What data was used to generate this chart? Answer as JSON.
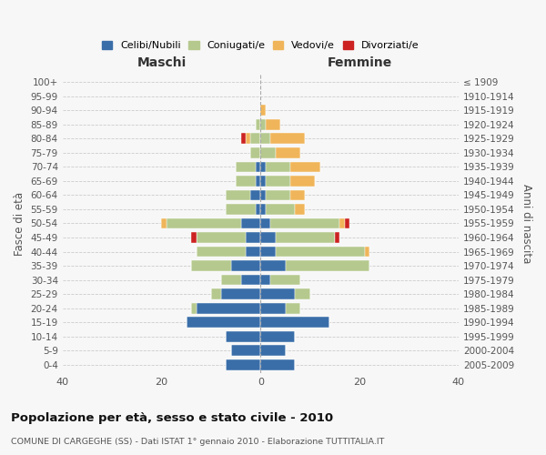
{
  "age_groups": [
    "0-4",
    "5-9",
    "10-14",
    "15-19",
    "20-24",
    "25-29",
    "30-34",
    "35-39",
    "40-44",
    "45-49",
    "50-54",
    "55-59",
    "60-64",
    "65-69",
    "70-74",
    "75-79",
    "80-84",
    "85-89",
    "90-94",
    "95-99",
    "100+"
  ],
  "birth_years": [
    "2005-2009",
    "2000-2004",
    "1995-1999",
    "1990-1994",
    "1985-1989",
    "1980-1984",
    "1975-1979",
    "1970-1974",
    "1965-1969",
    "1960-1964",
    "1955-1959",
    "1950-1954",
    "1945-1949",
    "1940-1944",
    "1935-1939",
    "1930-1934",
    "1925-1929",
    "1920-1924",
    "1915-1919",
    "1910-1914",
    "≤ 1909"
  ],
  "colors": {
    "celibi": "#3a6ea8",
    "coniugati": "#b5c98e",
    "vedovi": "#f0b55a",
    "divorziati": "#cc2222"
  },
  "males": {
    "celibi": [
      7,
      6,
      7,
      15,
      13,
      8,
      4,
      6,
      3,
      3,
      4,
      1,
      2,
      1,
      1,
      0,
      0,
      0,
      0,
      0,
      0
    ],
    "coniugati": [
      0,
      0,
      0,
      0,
      1,
      2,
      4,
      8,
      10,
      10,
      15,
      6,
      5,
      4,
      4,
      2,
      2,
      1,
      0,
      0,
      0
    ],
    "vedovi": [
      0,
      0,
      0,
      0,
      0,
      0,
      0,
      0,
      0,
      0,
      1,
      0,
      0,
      0,
      0,
      0,
      1,
      0,
      0,
      0,
      0
    ],
    "divorziati": [
      0,
      0,
      0,
      0,
      0,
      0,
      0,
      0,
      0,
      1,
      0,
      0,
      0,
      0,
      0,
      0,
      1,
      0,
      0,
      0,
      0
    ]
  },
  "females": {
    "nubili": [
      7,
      5,
      7,
      14,
      5,
      7,
      2,
      5,
      3,
      3,
      2,
      1,
      1,
      1,
      1,
      0,
      0,
      0,
      0,
      0,
      0
    ],
    "coniugate": [
      0,
      0,
      0,
      0,
      3,
      3,
      6,
      17,
      18,
      12,
      14,
      6,
      5,
      5,
      5,
      3,
      2,
      1,
      0,
      0,
      0
    ],
    "vedove": [
      0,
      0,
      0,
      0,
      0,
      0,
      0,
      0,
      1,
      0,
      1,
      2,
      3,
      5,
      6,
      5,
      7,
      3,
      1,
      0,
      0
    ],
    "divorziate": [
      0,
      0,
      0,
      0,
      0,
      0,
      0,
      0,
      0,
      1,
      1,
      0,
      0,
      0,
      0,
      0,
      0,
      0,
      0,
      0,
      0
    ]
  },
  "xlim": 40,
  "title": "Popolazione per età, sesso e stato civile - 2010",
  "subtitle": "COMUNE DI CARGEGHE (SS) - Dati ISTAT 1° gennaio 2010 - Elaborazione TUTTITALIA.IT",
  "xlabel_left": "Maschi",
  "xlabel_right": "Femmine",
  "ylabel_left": "Fasce di età",
  "ylabel_right": "Anni di nascita",
  "legend_labels": [
    "Celibi/Nubili",
    "Coniugati/e",
    "Vedovi/e",
    "Divorziati/e"
  ],
  "bg_color": "#f7f7f7",
  "bar_height": 0.75
}
